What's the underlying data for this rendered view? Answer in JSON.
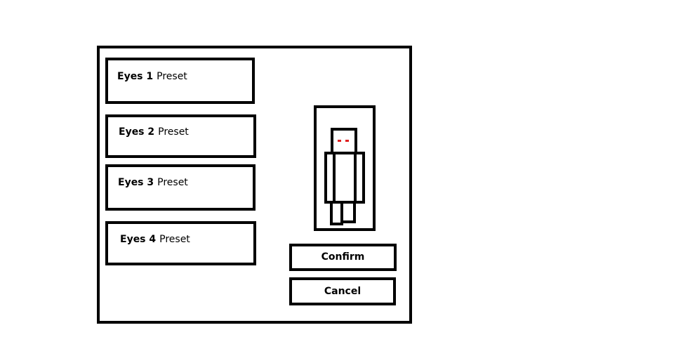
{
  "presets": [
    {
      "name": "Eyes 1",
      "suffix": "Preset"
    },
    {
      "name": "Eyes 2",
      "suffix": "Preset"
    },
    {
      "name": "Eyes 3",
      "suffix": "Preset"
    },
    {
      "name": "Eyes 4",
      "suffix": "Preset"
    }
  ],
  "preview": {
    "figure": "character-figure",
    "eye_color": "#e02020"
  },
  "buttons": {
    "confirm_label": "Confirm",
    "cancel_label": "Cancel"
  }
}
